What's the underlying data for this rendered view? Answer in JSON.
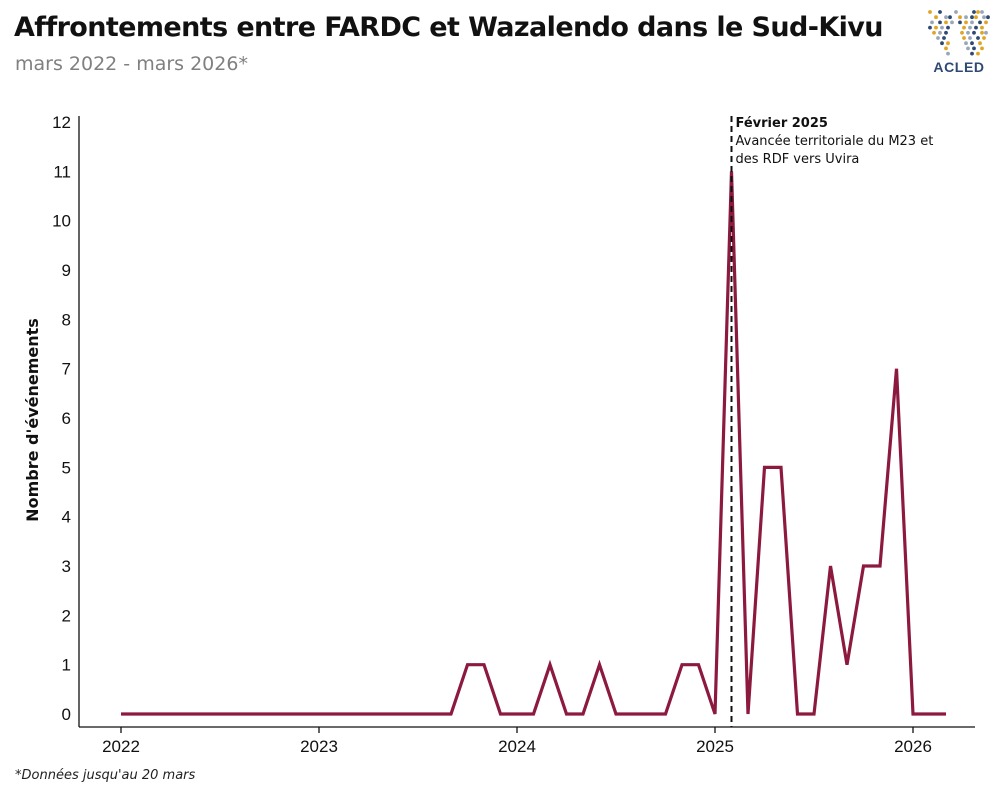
{
  "header": {
    "title": "Affrontements entre FARDC et Wazalendo dans le Sud-Kivu",
    "subtitle": "mars 2022  - mars 2026*"
  },
  "footnote": "*Données jusqu'au  20 mars",
  "logo": {
    "text": "ACLED",
    "icon": "world-map-dots-icon",
    "colors": [
      "#2e4a73",
      "#e0a526",
      "#9aa7b8"
    ]
  },
  "chart_data": {
    "type": "line",
    "title": "Affrontements entre FARDC et Wazalendo dans le Sud-Kivu",
    "subtitle": "mars 2022  - mars 2026*",
    "xlabel": "",
    "ylabel": "Nombre d'événements",
    "x_tick_labels": [
      "2022",
      "2023",
      "2024",
      "2025",
      "2026"
    ],
    "y_tick_labels": [
      "0",
      "1",
      "2",
      "3",
      "4",
      "5",
      "6",
      "7",
      "8",
      "9",
      "10",
      "11",
      "12"
    ],
    "ylim": [
      0,
      12
    ],
    "grid": false,
    "line_color": "#8c1a3f",
    "series": [
      {
        "values": [
          {
            "x": "2022-01",
            "y": 0
          },
          {
            "x": "2022-02",
            "y": 0
          },
          {
            "x": "2022-03",
            "y": 0
          },
          {
            "x": "2022-04",
            "y": 0
          },
          {
            "x": "2022-05",
            "y": 0
          },
          {
            "x": "2022-06",
            "y": 0
          },
          {
            "x": "2022-07",
            "y": 0
          },
          {
            "x": "2022-08",
            "y": 0
          },
          {
            "x": "2022-09",
            "y": 0
          },
          {
            "x": "2022-10",
            "y": 0
          },
          {
            "x": "2022-11",
            "y": 0
          },
          {
            "x": "2022-12",
            "y": 0
          },
          {
            "x": "2023-01",
            "y": 0
          },
          {
            "x": "2023-02",
            "y": 0
          },
          {
            "x": "2023-03",
            "y": 0
          },
          {
            "x": "2023-04",
            "y": 0
          },
          {
            "x": "2023-05",
            "y": 0
          },
          {
            "x": "2023-06",
            "y": 0
          },
          {
            "x": "2023-07",
            "y": 0
          },
          {
            "x": "2023-08",
            "y": 0
          },
          {
            "x": "2023-09",
            "y": 0
          },
          {
            "x": "2023-10",
            "y": 1
          },
          {
            "x": "2023-11",
            "y": 1
          },
          {
            "x": "2023-12",
            "y": 0
          },
          {
            "x": "2024-01",
            "y": 0
          },
          {
            "x": "2024-02",
            "y": 0
          },
          {
            "x": "2024-03",
            "y": 1
          },
          {
            "x": "2024-04",
            "y": 0
          },
          {
            "x": "2024-05",
            "y": 0
          },
          {
            "x": "2024-06",
            "y": 1
          },
          {
            "x": "2024-07",
            "y": 0
          },
          {
            "x": "2024-08",
            "y": 0
          },
          {
            "x": "2024-09",
            "y": 0
          },
          {
            "x": "2024-10",
            "y": 0
          },
          {
            "x": "2024-11",
            "y": 1
          },
          {
            "x": "2024-12",
            "y": 1
          },
          {
            "x": "2025-01",
            "y": 0
          },
          {
            "x": "2025-02",
            "y": 11
          },
          {
            "x": "2025-03",
            "y": 0
          },
          {
            "x": "2025-04",
            "y": 5
          },
          {
            "x": "2025-05",
            "y": 5
          },
          {
            "x": "2025-06",
            "y": 0
          },
          {
            "x": "2025-07",
            "y": 0
          },
          {
            "x": "2025-08",
            "y": 3
          },
          {
            "x": "2025-09",
            "y": 1
          },
          {
            "x": "2025-10",
            "y": 3
          },
          {
            "x": "2025-11",
            "y": 3
          },
          {
            "x": "2025-12",
            "y": 7
          },
          {
            "x": "2026-01",
            "y": 0
          },
          {
            "x": "2026-02",
            "y": 0
          },
          {
            "x": "2026-03",
            "y": 0
          }
        ]
      }
    ],
    "annotation": {
      "x": "2025-02",
      "line_style": "dashed",
      "heading": "Février 2025",
      "lines": [
        "Avancée territoriale du M23 et",
        "des RDF vers Uvira"
      ]
    }
  }
}
